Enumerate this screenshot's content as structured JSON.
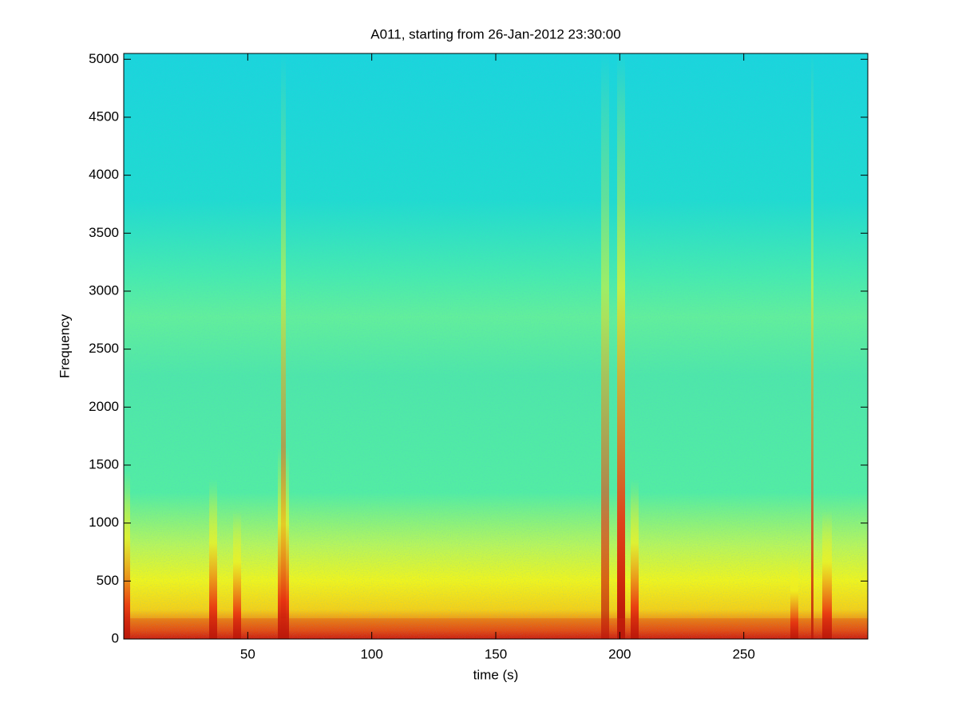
{
  "chart_data": {
    "type": "spectrogram",
    "title": "A011, starting from 26-Jan-2012 23:30:00",
    "xlabel": "time (s)",
    "ylabel": "Frequency",
    "xlim": [
      0,
      300
    ],
    "ylim": [
      0,
      5050
    ],
    "xticks": [
      50,
      100,
      150,
      200,
      250
    ],
    "yticks": [
      0,
      500,
      1000,
      1500,
      2000,
      2500,
      3000,
      3500,
      4000,
      4500,
      5000
    ],
    "grid": false
  }
}
